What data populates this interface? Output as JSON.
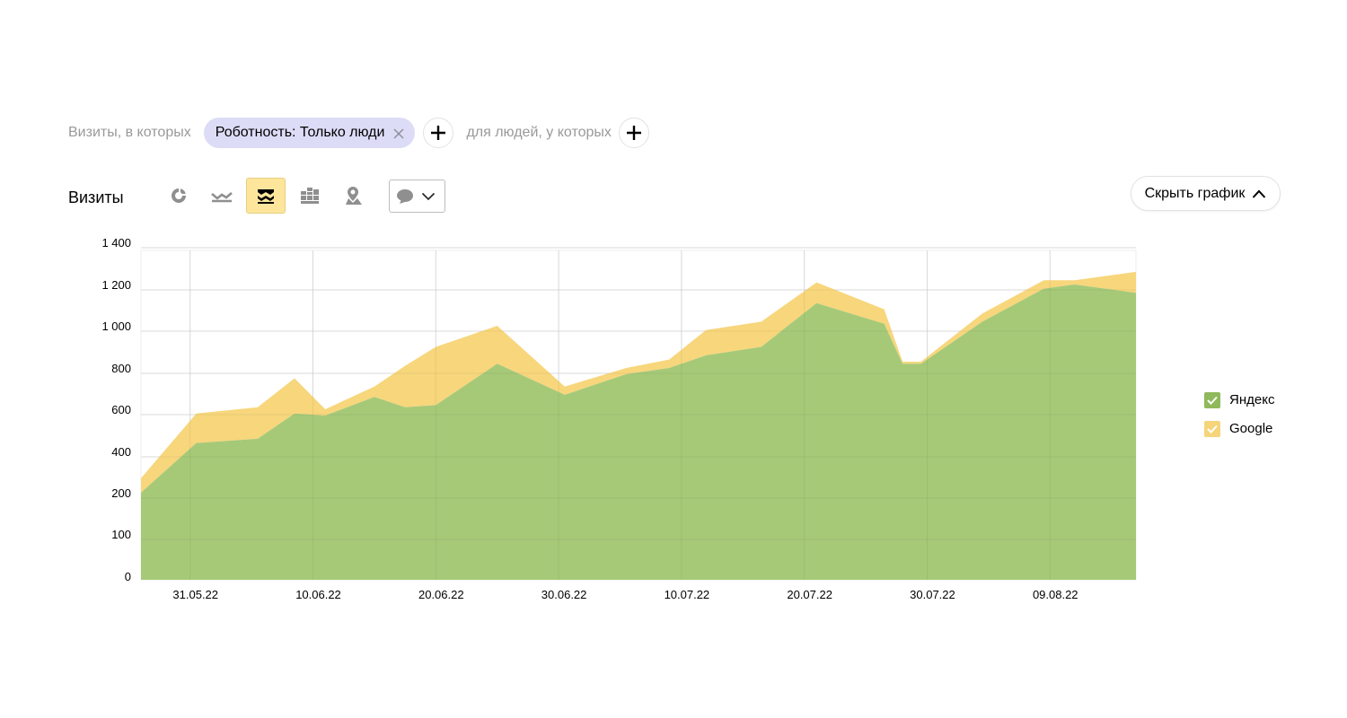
{
  "filters": {
    "prefix": "Визиты, в которых",
    "chip_label": "Роботность: Только люди",
    "people_label": "для людей, у которых"
  },
  "toolbar": {
    "title": "Визиты",
    "buttons": [
      {
        "name": "pie-chart-icon",
        "active": false
      },
      {
        "name": "line-chart-icon",
        "active": false
      },
      {
        "name": "area-chart-icon",
        "active": true
      },
      {
        "name": "bar-chart-icon",
        "active": false
      },
      {
        "name": "map-icon",
        "active": false
      }
    ],
    "annotations_icon": "comment-icon",
    "hide_chart_label": "Скрыть график"
  },
  "colors": {
    "yandex": "#a6c978",
    "google": "#f7d67c",
    "grid": "#e6e6e6",
    "active_button": "#fde69c",
    "chip": "#dcdcf7"
  },
  "chart_data": {
    "type": "area",
    "stacked": true,
    "x_start": "2022-05-27",
    "y_ticks": [
      "0",
      "100",
      "200",
      "400",
      "600",
      "800",
      "1 000",
      "1 200",
      "1 400"
    ],
    "x_ticks": [
      {
        "day": 4,
        "label": "31.05.22"
      },
      {
        "day": 14,
        "label": "10.06.22"
      },
      {
        "day": 24,
        "label": "20.06.22"
      },
      {
        "day": 34,
        "label": "30.06.22"
      },
      {
        "day": 44,
        "label": "10.07.22"
      },
      {
        "day": 54,
        "label": "20.07.22"
      },
      {
        "day": 64,
        "label": "30.07.22"
      },
      {
        "day": 74,
        "label": "09.08.22"
      }
    ],
    "series": [
      {
        "name": "Яндекс",
        "points": [
          [
            0,
            200
          ],
          [
            4.5,
            440
          ],
          [
            9.5,
            460
          ],
          [
            12.5,
            580
          ],
          [
            15,
            570
          ],
          [
            19,
            660
          ],
          [
            21.5,
            610
          ],
          [
            24,
            620
          ],
          [
            29,
            820
          ],
          [
            34.5,
            670
          ],
          [
            39.5,
            770
          ],
          [
            43,
            800
          ],
          [
            46,
            860
          ],
          [
            50.5,
            900
          ],
          [
            55,
            1110
          ],
          [
            60.5,
            1010
          ],
          [
            62,
            820
          ],
          [
            63.5,
            820
          ],
          [
            68.5,
            1020
          ],
          [
            73.5,
            1180
          ],
          [
            76,
            1200
          ],
          [
            81,
            1160
          ]
        ]
      },
      {
        "name": "Google",
        "points": [
          [
            0,
            70
          ],
          [
            4.5,
            140
          ],
          [
            9.5,
            150
          ],
          [
            12.5,
            170
          ],
          [
            15,
            30
          ],
          [
            19,
            50
          ],
          [
            21.5,
            200
          ],
          [
            24,
            280
          ],
          [
            29,
            180
          ],
          [
            34.5,
            40
          ],
          [
            39.5,
            30
          ],
          [
            43,
            40
          ],
          [
            46,
            120
          ],
          [
            50.5,
            120
          ],
          [
            55,
            100
          ],
          [
            60.5,
            70
          ],
          [
            62,
            10
          ],
          [
            63.5,
            10
          ],
          [
            68.5,
            40
          ],
          [
            73.5,
            40
          ],
          [
            76,
            20
          ],
          [
            81,
            100
          ]
        ]
      }
    ]
  }
}
